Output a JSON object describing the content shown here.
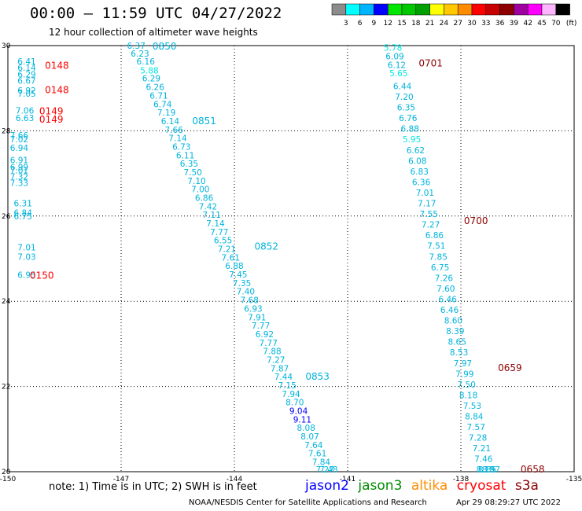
{
  "header": {
    "title": "00:00 – 11:59 UTC 04/27/2022",
    "subtitle": "12 hour collection of altimeter wave heights"
  },
  "colorbar": {
    "colors": [
      "#8c8c8c",
      "#00ffff",
      "#00b4ff",
      "#0000ff",
      "#00e600",
      "#00c800",
      "#00a000",
      "#ffff00",
      "#ffc800",
      "#ff8c00",
      "#ff0000",
      "#c80000",
      "#8c0000",
      "#a000a0",
      "#ff00ff",
      "#ffb4ff",
      "#000000"
    ],
    "labels": [
      "3",
      "6",
      "9",
      "12",
      "15",
      "18",
      "21",
      "24",
      "27",
      "30",
      "33",
      "36",
      "39",
      "42",
      "45",
      "70"
    ],
    "unit": "(ft)"
  },
  "footer": {
    "note": "note: 1) Time is in UTC; 2) SWH is in feet",
    "satellites": [
      {
        "name": "jason2",
        "color": "#0000ff"
      },
      {
        "name": "jason3",
        "color": "#008c00"
      },
      {
        "name": "altika",
        "color": "#ff8c00"
      },
      {
        "name": "cryosat",
        "color": "#ff0000"
      },
      {
        "name": "s3a",
        "color": "#8c0000"
      }
    ],
    "credit": "NOAA/NESDIS Center for Satellite Applications and Research",
    "timestamp": "Apr 29 08:29:27 UTC 2022"
  },
  "chart_data": {
    "type": "scatter",
    "xlim": [
      -150,
      -135
    ],
    "ylim": [
      20,
      30
    ],
    "x_ticks": [
      "-150",
      "-147",
      "-144",
      "-141",
      "-138",
      "-135"
    ],
    "y_ticks": [
      "20",
      "22",
      "24",
      "26",
      "28",
      "30"
    ],
    "grid": true,
    "tracks": [
      {
        "satellite": "cryosat",
        "color": "#ff0000",
        "points": [
          {
            "lon": -149.5,
            "lat": 29.63,
            "swh": "6.41"
          },
          {
            "lon": -149.5,
            "lat": 29.48,
            "swh": "6.14"
          },
          {
            "lon": -149.5,
            "lat": 29.33,
            "swh": "6.29"
          },
          {
            "lon": -149.5,
            "lat": 29.18,
            "swh": "6.67"
          },
          {
            "lon": -149.5,
            "lat": 28.95,
            "swh": "6.92"
          },
          {
            "lon": -149.5,
            "lat": 28.87,
            "swh": "7.05"
          },
          {
            "lon": -149.55,
            "lat": 28.48,
            "swh": "7.06"
          },
          {
            "lon": -149.55,
            "lat": 28.3,
            "swh": "6.63"
          },
          {
            "lon": -149.7,
            "lat": 27.9,
            "swh": "7.66"
          },
          {
            "lon": -149.7,
            "lat": 27.8,
            "swh": "7.02"
          },
          {
            "lon": -149.7,
            "lat": 27.6,
            "swh": "6.94"
          },
          {
            "lon": -149.7,
            "lat": 27.32,
            "swh": "6.91"
          },
          {
            "lon": -149.7,
            "lat": 27.15,
            "swh": "6.99"
          },
          {
            "lon": -149.7,
            "lat": 27.08,
            "swh": "7.01"
          },
          {
            "lon": -149.7,
            "lat": 26.93,
            "swh": "7.32"
          },
          {
            "lon": -149.7,
            "lat": 26.78,
            "swh": "7.33"
          },
          {
            "lon": -149.6,
            "lat": 26.3,
            "swh": "6.31"
          },
          {
            "lon": -149.6,
            "lat": 26.08,
            "swh": "6.84"
          },
          {
            "lon": -149.6,
            "lat": 26.0,
            "swh": "6.75"
          },
          {
            "lon": -149.5,
            "lat": 25.27,
            "swh": "7.01"
          },
          {
            "lon": -149.5,
            "lat": 25.05,
            "swh": "7.03"
          },
          {
            "lon": -149.5,
            "lat": 24.62,
            "swh": "6.95"
          }
        ],
        "times": [
          {
            "lon": -148.7,
            "lat": 29.55,
            "label": "0148"
          },
          {
            "lon": -148.7,
            "lat": 28.98,
            "label": "0148"
          },
          {
            "lon": -148.85,
            "lat": 28.48,
            "label": "0149"
          },
          {
            "lon": -148.85,
            "lat": 28.28,
            "label": "0149"
          },
          {
            "lon": -149.1,
            "lat": 24.62,
            "label": "0150"
          }
        ]
      },
      {
        "satellite": "jason3",
        "color": "#00b4dc",
        "points": [
          {
            "lon": -146.6,
            "lat": 30.0,
            "swh": "6.37"
          },
          {
            "lon": -146.5,
            "lat": 29.82,
            "swh": "6.23"
          },
          {
            "lon": -146.35,
            "lat": 29.63,
            "swh": "6.16"
          },
          {
            "lon": -146.25,
            "lat": 29.42,
            "swh": "5.88"
          },
          {
            "lon": -146.2,
            "lat": 29.23,
            "swh": "6.29"
          },
          {
            "lon": -146.1,
            "lat": 29.03,
            "swh": "6.26"
          },
          {
            "lon": -146.0,
            "lat": 28.83,
            "swh": "6.71"
          },
          {
            "lon": -145.9,
            "lat": 28.63,
            "swh": "6.74"
          },
          {
            "lon": -145.8,
            "lat": 28.43,
            "swh": "7.19"
          },
          {
            "lon": -145.7,
            "lat": 28.23,
            "swh": "6.14"
          },
          {
            "lon": -145.6,
            "lat": 28.03,
            "swh": "7.66"
          },
          {
            "lon": -145.5,
            "lat": 27.83,
            "swh": "7.14"
          },
          {
            "lon": -145.4,
            "lat": 27.63,
            "swh": "6.73"
          },
          {
            "lon": -145.3,
            "lat": 27.43,
            "swh": "6.11"
          },
          {
            "lon": -145.2,
            "lat": 27.23,
            "swh": "6.35"
          },
          {
            "lon": -145.1,
            "lat": 27.03,
            "swh": "7.50"
          },
          {
            "lon": -145.0,
            "lat": 26.83,
            "swh": "7.10"
          },
          {
            "lon": -144.9,
            "lat": 26.63,
            "swh": "7.00"
          },
          {
            "lon": -144.8,
            "lat": 26.43,
            "swh": "6.86"
          },
          {
            "lon": -144.7,
            "lat": 26.23,
            "swh": "7.42"
          },
          {
            "lon": -144.6,
            "lat": 26.03,
            "swh": "7.11"
          },
          {
            "lon": -144.5,
            "lat": 25.83,
            "swh": "7.14"
          },
          {
            "lon": -144.4,
            "lat": 25.63,
            "swh": "7.77"
          },
          {
            "lon": -144.3,
            "lat": 25.43,
            "swh": "6.55"
          },
          {
            "lon": -144.2,
            "lat": 25.23,
            "swh": "7.21"
          },
          {
            "lon": -144.1,
            "lat": 25.03,
            "swh": "7.61"
          },
          {
            "lon": -144.0,
            "lat": 24.83,
            "swh": "6.88"
          },
          {
            "lon": -143.9,
            "lat": 24.63,
            "swh": "7.45"
          },
          {
            "lon": -143.8,
            "lat": 24.43,
            "swh": "7.35"
          },
          {
            "lon": -143.7,
            "lat": 24.23,
            "swh": "7.40"
          },
          {
            "lon": -143.6,
            "lat": 24.03,
            "swh": "7.68"
          },
          {
            "lon": -143.5,
            "lat": 23.83,
            "swh": "6.93"
          },
          {
            "lon": -143.4,
            "lat": 23.63,
            "swh": "7.91"
          },
          {
            "lon": -143.3,
            "lat": 23.43,
            "swh": "7.77"
          },
          {
            "lon": -143.2,
            "lat": 23.23,
            "swh": "6.92"
          },
          {
            "lon": -143.1,
            "lat": 23.03,
            "swh": "7.77"
          },
          {
            "lon": -143.0,
            "lat": 22.83,
            "swh": "7.88"
          },
          {
            "lon": -142.9,
            "lat": 22.63,
            "swh": "7.27"
          },
          {
            "lon": -142.8,
            "lat": 22.43,
            "swh": "7.87"
          },
          {
            "lon": -142.7,
            "lat": 22.23,
            "swh": "7.44"
          },
          {
            "lon": -142.6,
            "lat": 22.03,
            "swh": "7.15"
          },
          {
            "lon": -142.5,
            "lat": 21.83,
            "swh": "7.94"
          },
          {
            "lon": -142.4,
            "lat": 21.63,
            "swh": "8.70"
          },
          {
            "lon": -142.3,
            "lat": 21.43,
            "swh": "9.04"
          },
          {
            "lon": -142.2,
            "lat": 21.23,
            "swh": "9.11"
          },
          {
            "lon": -142.1,
            "lat": 21.03,
            "swh": "8.08"
          },
          {
            "lon": -142.0,
            "lat": 20.83,
            "swh": "8.07"
          },
          {
            "lon": -141.9,
            "lat": 20.63,
            "swh": "7.64"
          },
          {
            "lon": -141.8,
            "lat": 20.43,
            "swh": "7.61"
          },
          {
            "lon": -141.7,
            "lat": 20.23,
            "swh": "7.84"
          },
          {
            "lon": -141.6,
            "lat": 20.03,
            "swh": "7.27"
          },
          {
            "lon": -141.5,
            "lat": 19.83,
            "swh": "7.48"
          }
        ],
        "times": [
          {
            "lon": -145.85,
            "lat": 30.0,
            "label": "0850"
          },
          {
            "lon": -144.8,
            "lat": 28.25,
            "label": "0851"
          },
          {
            "lon": -143.15,
            "lat": 25.3,
            "label": "0852"
          },
          {
            "lon": -141.8,
            "lat": 22.25,
            "label": "0853"
          }
        ]
      },
      {
        "satellite": "s3a",
        "color": "#8c0000",
        "points": [
          {
            "lon": -139.8,
            "lat": 29.95,
            "swh": "5.78"
          },
          {
            "lon": -139.75,
            "lat": 29.75,
            "swh": "6.09"
          },
          {
            "lon": -139.7,
            "lat": 29.55,
            "swh": "6.12"
          },
          {
            "lon": -139.65,
            "lat": 29.35,
            "swh": "5.65"
          },
          {
            "lon": -139.55,
            "lat": 29.05,
            "swh": "6.44"
          },
          {
            "lon": -139.5,
            "lat": 28.8,
            "swh": "7.20"
          },
          {
            "lon": -139.45,
            "lat": 28.55,
            "swh": "6.35"
          },
          {
            "lon": -139.4,
            "lat": 28.3,
            "swh": "6.76"
          },
          {
            "lon": -139.35,
            "lat": 28.05,
            "swh": "6.88"
          },
          {
            "lon": -139.3,
            "lat": 27.8,
            "swh": "5.95"
          },
          {
            "lon": -139.2,
            "lat": 27.55,
            "swh": "6.62"
          },
          {
            "lon": -139.15,
            "lat": 27.3,
            "swh": "6.08"
          },
          {
            "lon": -139.1,
            "lat": 27.05,
            "swh": "6.83"
          },
          {
            "lon": -139.05,
            "lat": 26.8,
            "swh": "6.36"
          },
          {
            "lon": -138.95,
            "lat": 26.55,
            "swh": "7.01"
          },
          {
            "lon": -138.9,
            "lat": 26.3,
            "swh": "7.17"
          },
          {
            "lon": -138.85,
            "lat": 26.05,
            "swh": "7.55"
          },
          {
            "lon": -138.8,
            "lat": 25.8,
            "swh": "7.27"
          },
          {
            "lon": -138.7,
            "lat": 25.55,
            "swh": "6.86"
          },
          {
            "lon": -138.65,
            "lat": 25.3,
            "swh": "7.51"
          },
          {
            "lon": -138.6,
            "lat": 25.05,
            "swh": "7.85"
          },
          {
            "lon": -138.55,
            "lat": 24.8,
            "swh": "6.75"
          },
          {
            "lon": -138.45,
            "lat": 24.55,
            "swh": "7.26"
          },
          {
            "lon": -138.4,
            "lat": 24.3,
            "swh": "7.60"
          },
          {
            "lon": -138.35,
            "lat": 24.05,
            "swh": "6.46"
          },
          {
            "lon": -138.3,
            "lat": 23.8,
            "swh": "6.46"
          },
          {
            "lon": -138.2,
            "lat": 23.55,
            "swh": "8.60"
          },
          {
            "lon": -138.15,
            "lat": 23.3,
            "swh": "8.39"
          },
          {
            "lon": -138.1,
            "lat": 23.05,
            "swh": "8.65"
          },
          {
            "lon": -138.05,
            "lat": 22.8,
            "swh": "8.53"
          },
          {
            "lon": -137.95,
            "lat": 22.55,
            "swh": "7.97"
          },
          {
            "lon": -137.9,
            "lat": 22.3,
            "swh": "7.99"
          },
          {
            "lon": -137.85,
            "lat": 22.05,
            "swh": "7.50"
          },
          {
            "lon": -137.8,
            "lat": 21.8,
            "swh": "8.18"
          },
          {
            "lon": -137.7,
            "lat": 21.55,
            "swh": "7.53"
          },
          {
            "lon": -137.65,
            "lat": 21.3,
            "swh": "8.84"
          },
          {
            "lon": -137.6,
            "lat": 21.05,
            "swh": "7.57"
          },
          {
            "lon": -137.55,
            "lat": 20.8,
            "swh": "7.28"
          },
          {
            "lon": -137.45,
            "lat": 20.55,
            "swh": "7.21"
          },
          {
            "lon": -137.4,
            "lat": 20.3,
            "swh": "7.46"
          },
          {
            "lon": -137.35,
            "lat": 20.05,
            "swh": "8.15"
          },
          {
            "lon": -137.3,
            "lat": 19.8,
            "swh": "8.85"
          },
          {
            "lon": -137.2,
            "lat": 19.55,
            "swh": "8.97"
          }
        ],
        "times": [
          {
            "lon": -138.8,
            "lat": 29.6,
            "label": "0701"
          },
          {
            "lon": -137.6,
            "lat": 25.9,
            "label": "0700"
          },
          {
            "lon": -136.7,
            "lat": 22.45,
            "label": "0659"
          },
          {
            "lon": -136.1,
            "lat": 20.0,
            "label": "0658"
          }
        ]
      }
    ]
  }
}
